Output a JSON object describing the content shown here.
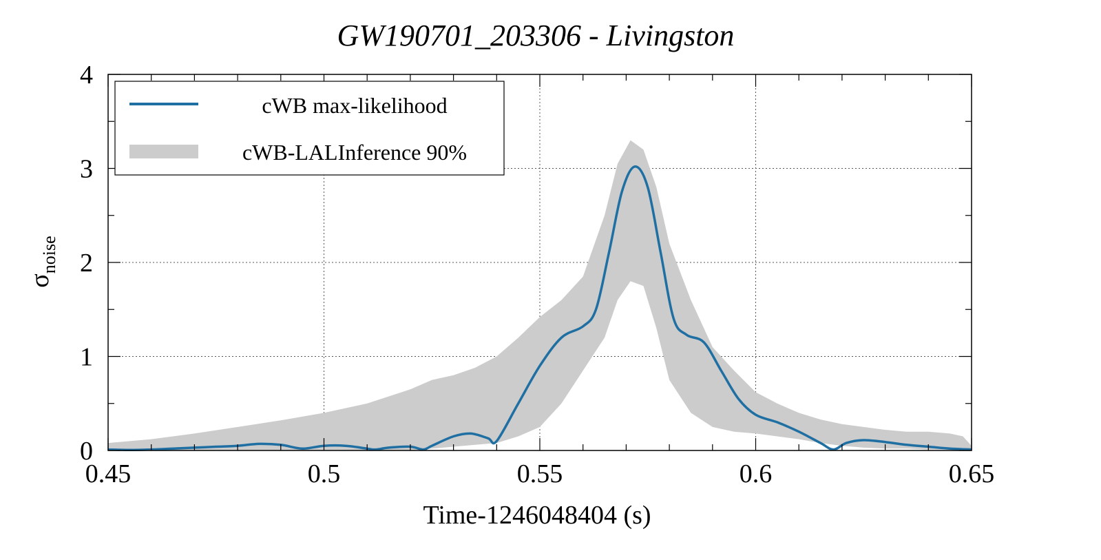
{
  "chart_data": {
    "type": "line",
    "title": "GW190701_203306 - Livingston",
    "xlabel": "Time-1246048404 (s)",
    "ylabel_main": "σ",
    "ylabel_sub": "noise",
    "xlim": [
      0.45,
      0.65
    ],
    "ylim": [
      0,
      4
    ],
    "xticks": [
      0.45,
      0.5,
      0.55,
      0.6,
      0.65
    ],
    "xtick_labels": [
      "0.45",
      "0.5",
      "0.55",
      "0.6",
      "0.65"
    ],
    "yticks": [
      0,
      1,
      2,
      3,
      4
    ],
    "ytick_labels": [
      "0",
      "1",
      "2",
      "3",
      "4"
    ],
    "grid": true,
    "legend_position": "top-left",
    "colors": {
      "line": "#1f6fa3",
      "band": "#cccccc"
    },
    "series": [
      {
        "name": "cWB max-likelihood",
        "kind": "line",
        "x": [
          0.45,
          0.455,
          0.46,
          0.465,
          0.47,
          0.475,
          0.48,
          0.485,
          0.49,
          0.495,
          0.5,
          0.505,
          0.51,
          0.512,
          0.515,
          0.52,
          0.523,
          0.525,
          0.53,
          0.534,
          0.538,
          0.54,
          0.545,
          0.55,
          0.555,
          0.56,
          0.563,
          0.566,
          0.569,
          0.572,
          0.575,
          0.578,
          0.581,
          0.584,
          0.588,
          0.592,
          0.596,
          0.6,
          0.605,
          0.61,
          0.615,
          0.618,
          0.621,
          0.625,
          0.63,
          0.635,
          0.64,
          0.645,
          0.65
        ],
        "y": [
          0.01,
          0.005,
          0.01,
          0.02,
          0.03,
          0.04,
          0.05,
          0.07,
          0.06,
          0.02,
          0.05,
          0.05,
          0.02,
          0.01,
          0.03,
          0.04,
          0.01,
          0.05,
          0.15,
          0.18,
          0.13,
          0.1,
          0.5,
          0.9,
          1.2,
          1.32,
          1.5,
          2.1,
          2.75,
          3.02,
          2.8,
          2.1,
          1.4,
          1.23,
          1.15,
          0.85,
          0.55,
          0.38,
          0.3,
          0.2,
          0.08,
          0.01,
          0.08,
          0.11,
          0.09,
          0.06,
          0.04,
          0.02,
          0.01
        ]
      },
      {
        "name": "cWB-LALInference 90%",
        "kind": "band",
        "x": [
          0.45,
          0.46,
          0.47,
          0.48,
          0.49,
          0.5,
          0.51,
          0.52,
          0.525,
          0.53,
          0.535,
          0.54,
          0.545,
          0.55,
          0.555,
          0.56,
          0.565,
          0.568,
          0.571,
          0.574,
          0.577,
          0.58,
          0.585,
          0.59,
          0.595,
          0.6,
          0.605,
          0.61,
          0.615,
          0.62,
          0.625,
          0.63,
          0.635,
          0.64,
          0.645,
          0.648,
          0.65
        ],
        "lower": [
          0,
          0,
          0,
          0,
          0,
          0,
          0,
          0,
          0.02,
          0.04,
          0.06,
          0.08,
          0.15,
          0.25,
          0.5,
          0.85,
          1.2,
          1.6,
          1.8,
          1.75,
          1.3,
          0.75,
          0.4,
          0.25,
          0.2,
          0.18,
          0.15,
          0.12,
          0.08,
          0.05,
          0.03,
          0.02,
          0.02,
          0.01,
          0.01,
          0.01,
          0
        ],
        "upper": [
          0.08,
          0.12,
          0.18,
          0.25,
          0.32,
          0.4,
          0.5,
          0.65,
          0.75,
          0.8,
          0.88,
          1.0,
          1.2,
          1.42,
          1.6,
          1.85,
          2.5,
          3.05,
          3.3,
          3.2,
          2.8,
          2.2,
          1.6,
          1.1,
          0.85,
          0.62,
          0.5,
          0.4,
          0.33,
          0.28,
          0.25,
          0.22,
          0.2,
          0.2,
          0.18,
          0.15,
          0.05
        ]
      }
    ]
  }
}
